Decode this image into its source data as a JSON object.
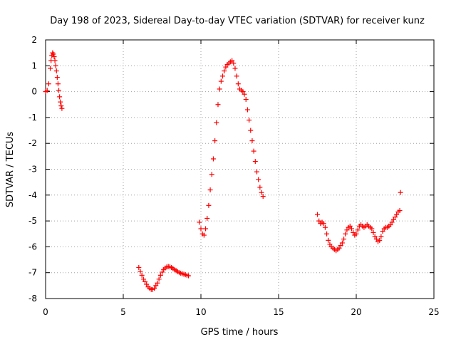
{
  "chart_data": {
    "type": "scatter",
    "title": "Day 198 of 2023, Sidereal Day-to-day VTEC variation (SDTVAR) for receiver kunz",
    "xlabel": "GPS time / hours",
    "ylabel": "SDTVAR / TECUs",
    "xlim": [
      0,
      25
    ],
    "ylim": [
      -8,
      2
    ],
    "x_ticks": [
      "0",
      "5",
      "10",
      "15",
      "20",
      "25"
    ],
    "y_ticks": [
      "2",
      "1",
      "0",
      "-1",
      "-2",
      "-3",
      "-4",
      "-5",
      "-6",
      "-7",
      "-8"
    ],
    "grid": true,
    "marker": "+",
    "marker_color": "#ff0000",
    "series": [
      {
        "x": [
          0.0,
          0.1,
          0.2,
          0.3,
          0.35,
          0.4,
          0.45,
          0.5,
          0.55,
          0.6,
          0.65,
          0.7,
          0.75,
          0.8,
          0.85,
          0.9,
          0.95,
          1.0,
          1.05
        ],
        "y": [
          0.0,
          0.05,
          0.3,
          0.9,
          1.2,
          1.4,
          1.5,
          1.45,
          1.35,
          1.2,
          1.0,
          0.8,
          0.55,
          0.3,
          0.05,
          -0.2,
          -0.4,
          -0.55,
          -0.65
        ]
      },
      {
        "x": [
          6.0,
          6.1,
          6.2,
          6.3,
          6.4,
          6.5,
          6.6,
          6.7,
          6.8,
          6.9,
          7.0,
          7.1,
          7.2,
          7.3,
          7.4,
          7.5,
          7.6,
          7.7,
          7.8,
          7.9,
          8.0,
          8.1,
          8.2,
          8.3,
          8.4,
          8.5,
          8.6,
          8.7,
          8.8,
          8.9,
          9.0,
          9.1,
          9.2
        ],
        "y": [
          -6.8,
          -6.95,
          -7.1,
          -7.25,
          -7.35,
          -7.45,
          -7.55,
          -7.6,
          -7.65,
          -7.65,
          -7.6,
          -7.5,
          -7.4,
          -7.25,
          -7.1,
          -6.98,
          -6.88,
          -6.82,
          -6.78,
          -6.76,
          -6.77,
          -6.8,
          -6.84,
          -6.88,
          -6.92,
          -6.96,
          -7.0,
          -7.02,
          -7.04,
          -7.06,
          -7.08,
          -7.1,
          -7.12
        ]
      },
      {
        "x": [
          9.9,
          10.0,
          10.1,
          10.2,
          10.3,
          10.4,
          10.5,
          10.6,
          10.7,
          10.8,
          10.9,
          11.0,
          11.1,
          11.2,
          11.3,
          11.4,
          11.5,
          11.6,
          11.7,
          11.8,
          11.9,
          12.0,
          12.1,
          12.2,
          12.3,
          12.4,
          12.5,
          12.6,
          12.7,
          12.8,
          12.9,
          13.0,
          13.1,
          13.2,
          13.3,
          13.4,
          13.5,
          13.6,
          13.7,
          13.8,
          13.9,
          14.0
        ],
        "y": [
          -5.05,
          -5.3,
          -5.5,
          -5.55,
          -5.3,
          -4.9,
          -4.4,
          -3.8,
          -3.2,
          -2.6,
          -1.9,
          -1.2,
          -0.5,
          0.1,
          0.4,
          0.6,
          0.8,
          0.95,
          1.05,
          1.1,
          1.15,
          1.2,
          1.1,
          0.9,
          0.6,
          0.3,
          0.1,
          0.05,
          0.0,
          -0.1,
          -0.3,
          -0.7,
          -1.1,
          -1.5,
          -1.9,
          -2.3,
          -2.7,
          -3.1,
          -3.4,
          -3.7,
          -3.9,
          -4.05
        ]
      },
      {
        "x": [
          17.5,
          17.6,
          17.7,
          17.8,
          17.9,
          18.0,
          18.1,
          18.2,
          18.3,
          18.4,
          18.5,
          18.6,
          18.7,
          18.8,
          18.9,
          19.0,
          19.1,
          19.2,
          19.3,
          19.4,
          19.5,
          19.6,
          19.7,
          19.8,
          19.9,
          20.0,
          20.1,
          20.2,
          20.3,
          20.4,
          20.5,
          20.6,
          20.7,
          20.8,
          20.9,
          21.0,
          21.1,
          21.2,
          21.3,
          21.4,
          21.5,
          21.6,
          21.7,
          21.8,
          21.9,
          22.0,
          22.1,
          22.2,
          22.3,
          22.4,
          22.5,
          22.6,
          22.7,
          22.8,
          22.85
        ],
        "y": [
          -4.75,
          -5.0,
          -5.1,
          -5.05,
          -5.1,
          -5.25,
          -5.5,
          -5.75,
          -5.9,
          -6.0,
          -6.05,
          -6.1,
          -6.15,
          -6.1,
          -6.05,
          -5.95,
          -5.85,
          -5.7,
          -5.5,
          -5.35,
          -5.25,
          -5.2,
          -5.3,
          -5.45,
          -5.55,
          -5.5,
          -5.35,
          -5.2,
          -5.15,
          -5.2,
          -5.25,
          -5.2,
          -5.15,
          -5.2,
          -5.25,
          -5.3,
          -5.45,
          -5.6,
          -5.7,
          -5.8,
          -5.75,
          -5.6,
          -5.4,
          -5.3,
          -5.25,
          -5.25,
          -5.2,
          -5.15,
          -5.05,
          -4.95,
          -4.85,
          -4.75,
          -4.65,
          -4.6,
          -3.9
        ]
      }
    ]
  }
}
